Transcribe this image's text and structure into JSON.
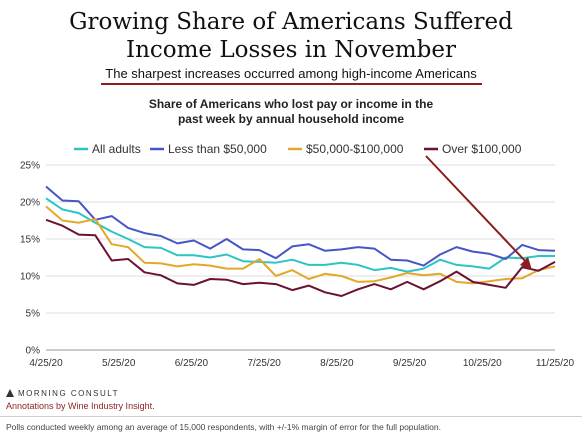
{
  "header": {
    "title_line1": "Growing Share of Americans Suffered",
    "title_line2": "Income Losses in November",
    "subtitle": "The sharpest increases occurred among high-income Americans"
  },
  "chart_data": {
    "type": "line",
    "title_line1": "Share of Americans who lost pay or income in the",
    "title_line2": "past week by annual household income",
    "xlabel": "",
    "ylabel": "",
    "ylim": [
      0,
      25
    ],
    "y_ticks": [
      "0%",
      "5%",
      "10%",
      "15%",
      "20%",
      "25%"
    ],
    "x_ticks": [
      "4/25/20",
      "5/25/20",
      "6/25/20",
      "7/25/20",
      "8/25/20",
      "9/25/20",
      "10/25/20",
      "11/25/20"
    ],
    "x": [
      "4/25/20",
      "5/2/20",
      "5/9/20",
      "5/16/20",
      "5/23/20",
      "5/30/20",
      "6/6/20",
      "6/13/20",
      "6/20/20",
      "6/27/20",
      "7/4/20",
      "7/11/20",
      "7/18/20",
      "7/25/20",
      "8/1/20",
      "8/8/20",
      "8/15/20",
      "8/22/20",
      "8/29/20",
      "9/5/20",
      "9/12/20",
      "9/19/20",
      "9/26/20",
      "10/3/20",
      "10/10/20",
      "10/17/20",
      "10/24/20",
      "10/31/20",
      "11/7/20",
      "11/14/20",
      "11/21/20",
      "11/28/20"
    ],
    "grid": true,
    "legend_position": "top",
    "series": [
      {
        "name": "All adults",
        "color": "#2cc4c4",
        "values": [
          20.5,
          19.0,
          18.5,
          17.2,
          16.0,
          15.0,
          13.9,
          13.8,
          12.8,
          12.8,
          12.5,
          12.9,
          12.0,
          11.9,
          11.8,
          12.2,
          11.5,
          11.5,
          11.8,
          11.5,
          10.8,
          11.1,
          10.6,
          11.0,
          12.2,
          11.5,
          11.3,
          11.0,
          12.5,
          12.4,
          12.7,
          12.7
        ]
      },
      {
        "name": "Less than $50,000",
        "color": "#4756c4",
        "values": [
          22.1,
          20.2,
          20.1,
          17.6,
          18.1,
          16.5,
          15.8,
          15.4,
          14.4,
          14.8,
          13.7,
          15.0,
          13.6,
          13.5,
          12.4,
          14.0,
          14.3,
          13.4,
          13.6,
          13.9,
          13.7,
          12.2,
          12.1,
          11.4,
          12.9,
          13.9,
          13.3,
          13.0,
          12.3,
          14.2,
          13.5,
          13.4
        ]
      },
      {
        "name": "$50,000-$100,000",
        "color": "#e2a82a",
        "values": [
          19.4,
          17.5,
          17.2,
          17.7,
          14.3,
          13.9,
          11.8,
          11.7,
          11.3,
          11.6,
          11.4,
          11.0,
          11.0,
          12.3,
          10.0,
          10.8,
          9.6,
          10.3,
          10.0,
          9.2,
          9.3,
          9.8,
          10.4,
          10.1,
          10.3,
          9.2,
          9.0,
          9.3,
          9.6,
          9.7,
          10.8,
          11.3
        ]
      },
      {
        "name": "Over $100,000",
        "color": "#6b1232",
        "values": [
          17.6,
          16.8,
          15.6,
          15.5,
          12.1,
          12.3,
          10.5,
          10.1,
          9.0,
          8.8,
          9.6,
          9.5,
          8.9,
          9.1,
          8.9,
          8.1,
          8.7,
          7.8,
          7.3,
          8.2,
          8.9,
          8.2,
          9.2,
          8.2,
          9.3,
          10.6,
          9.2,
          8.8,
          8.4,
          11.2,
          10.7,
          11.9
        ]
      }
    ]
  },
  "footer": {
    "brand": "MORNING CONSULT",
    "annotation": "Annotations by Wine Industry Insight.",
    "footnote": "Polls conducted weekly among an average of 15,000 respondents, with +/-1% margin of error for the full population."
  },
  "colors": {
    "subtitle_rule": "#8b1f1f",
    "arrow": "#8b1f1f",
    "grid": "#dddddd"
  }
}
